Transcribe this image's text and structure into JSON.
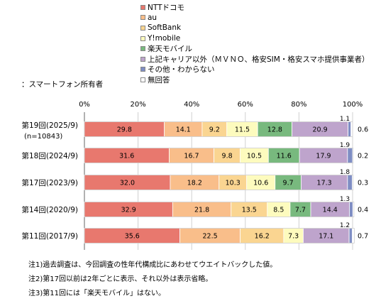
{
  "respondent_label": "：スマートフォン所有者",
  "notes": [
    "注1)過去調査は、今回調査の性年代構成比にあわせてウエイトバックした値。",
    "注2)第17回以前は2年ごとに表示、それ以外は表示省略。",
    "注3)第11回には「楽天モバイル」はない。"
  ],
  "chart_data": {
    "type": "bar",
    "orientation": "horizontal",
    "stacked": true,
    "xlim": [
      0,
      100
    ],
    "x_ticks": [
      "0%",
      "20%",
      "40%",
      "60%",
      "80%",
      "100%"
    ],
    "grid": true,
    "legend_position": "top",
    "series": [
      {
        "name": "NTTドコモ",
        "color": "#E8786E",
        "values": [
          29.8,
          31.6,
          32.0,
          32.9,
          35.6
        ]
      },
      {
        "name": "au",
        "color": "#F9BE8A",
        "values": [
          14.1,
          16.7,
          18.2,
          21.8,
          22.5
        ]
      },
      {
        "name": "SoftBank",
        "color": "#FAD591",
        "values": [
          9.2,
          9.8,
          10.3,
          13.5,
          16.2
        ]
      },
      {
        "name": "Y!mobile",
        "color": "#FDFBBE",
        "values": [
          11.5,
          10.5,
          10.6,
          8.5,
          7.3
        ]
      },
      {
        "name": "楽天モバイル",
        "color": "#78B97E",
        "values": [
          12.8,
          11.6,
          9.7,
          7.7,
          null
        ]
      },
      {
        "name": "上記キャリア以外（ＭＶＮＯ、格安SIM・格安スマホ提供事業者）",
        "color": "#BEA4CC",
        "values": [
          20.9,
          17.9,
          17.3,
          14.4,
          17.1
        ]
      },
      {
        "name": "その他・わからない",
        "color": "#7F8EC4",
        "values": [
          1.1,
          1.9,
          1.8,
          1.3,
          1.2
        ]
      },
      {
        "name": "無回答",
        "color": "#FFFFFF",
        "values": [
          0.6,
          0.2,
          0.3,
          0.4,
          0.7
        ]
      }
    ],
    "categories": [
      {
        "label": "第19回(2025/9)",
        "sublabel": "(n=10843)"
      },
      {
        "label": "第18回(2024/9)",
        "sublabel": ""
      },
      {
        "label": "第17回(2023/9)",
        "sublabel": ""
      },
      {
        "label": "第14回(2020/9)",
        "sublabel": ""
      },
      {
        "label": "第11回(2017/9)",
        "sublabel": ""
      }
    ],
    "labels": [
      [
        "29.8",
        "14.1",
        "9.2",
        "11.5",
        "12.8",
        "20.9",
        "1.1",
        "0.6"
      ],
      [
        "31.6",
        "16.7",
        "9.8",
        "10.5",
        "11.6",
        "17.9",
        "1.9",
        "0.2"
      ],
      [
        "32.0",
        "18.2",
        "10.3",
        "10.6",
        "9.7",
        "17.3",
        "1.8",
        "0.3"
      ],
      [
        "32.9",
        "21.8",
        "13.5",
        "8.5",
        "7.7",
        "14.4",
        "1.3",
        "0.4"
      ],
      [
        "35.6",
        "22.5",
        "16.2",
        "7.3",
        "",
        "17.1",
        "1.2",
        "0.7"
      ]
    ]
  }
}
